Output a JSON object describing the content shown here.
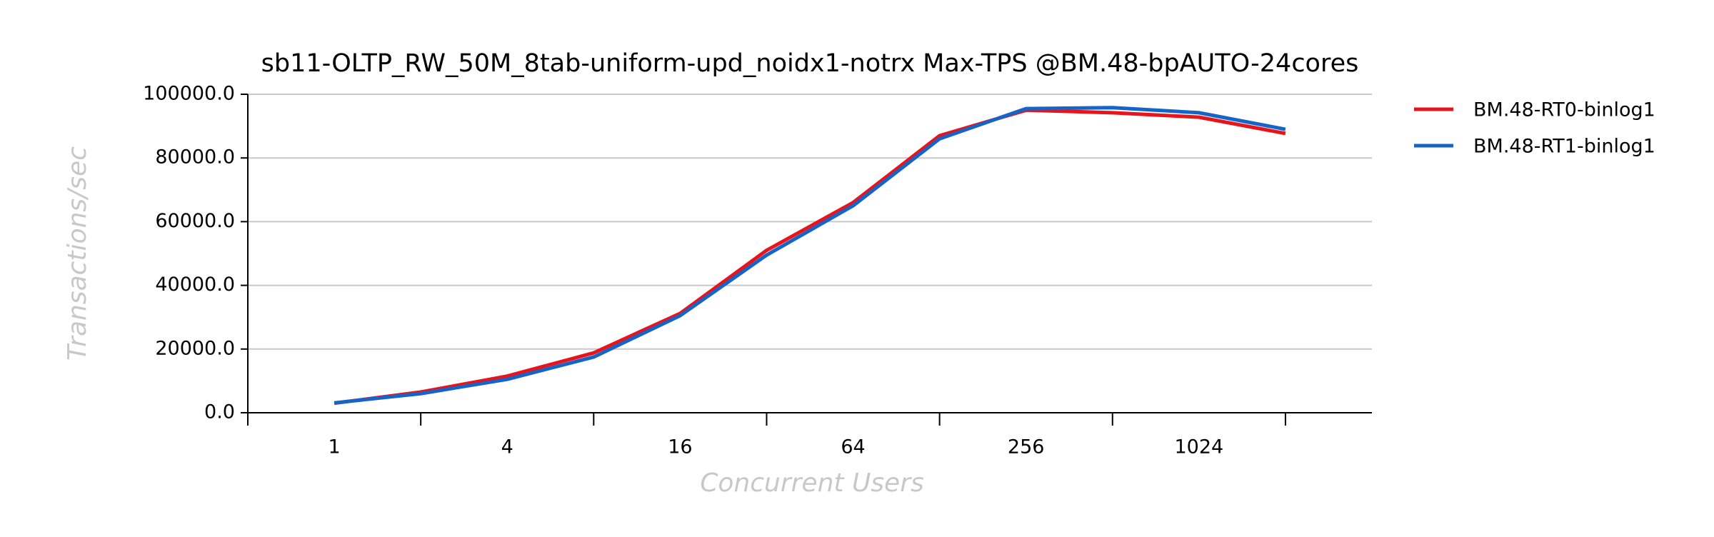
{
  "chart_data": {
    "type": "line",
    "title": "sb11-OLTP_RW_50M_8tab-uniform-upd_noidx1-notrx Max-TPS @BM.48-bpAUTO-24cores",
    "x_label": "Concurrent Users",
    "y_label": "Transactions/sec",
    "x": [
      1,
      2,
      4,
      8,
      16,
      32,
      64,
      128,
      256,
      512,
      1024,
      2048
    ],
    "x_scale": "log2",
    "xlim": [
      0.5,
      4096
    ],
    "xticks": [
      1,
      4,
      16,
      64,
      256,
      1024
    ],
    "xtick_marks": [
      0.5,
      2,
      8,
      32,
      128,
      512,
      2048
    ],
    "ylim": [
      0,
      100000
    ],
    "yticks": [
      {
        "value": 0,
        "label": "0.0"
      },
      {
        "value": 20000,
        "label": "20000.0"
      },
      {
        "value": 40000,
        "label": "40000.0"
      },
      {
        "value": 60000,
        "label": "60000.0"
      },
      {
        "value": 80000,
        "label": "80000.0"
      },
      {
        "value": 100000,
        "label": "100000.0"
      }
    ],
    "grid": true,
    "legend": "right",
    "series": [
      {
        "name": "BM.48-RT0-binlog1",
        "color": "#e8141c",
        "values": [
          3000,
          6500,
          11500,
          18800,
          31200,
          51000,
          66000,
          87000,
          95000,
          94200,
          92800,
          87700
        ]
      },
      {
        "name": "BM.48-RT1-binlog1",
        "color": "#1565c8",
        "values": [
          3100,
          6000,
          10500,
          17500,
          30500,
          49500,
          65000,
          86000,
          95500,
          95800,
          94200,
          89000
        ]
      }
    ]
  }
}
